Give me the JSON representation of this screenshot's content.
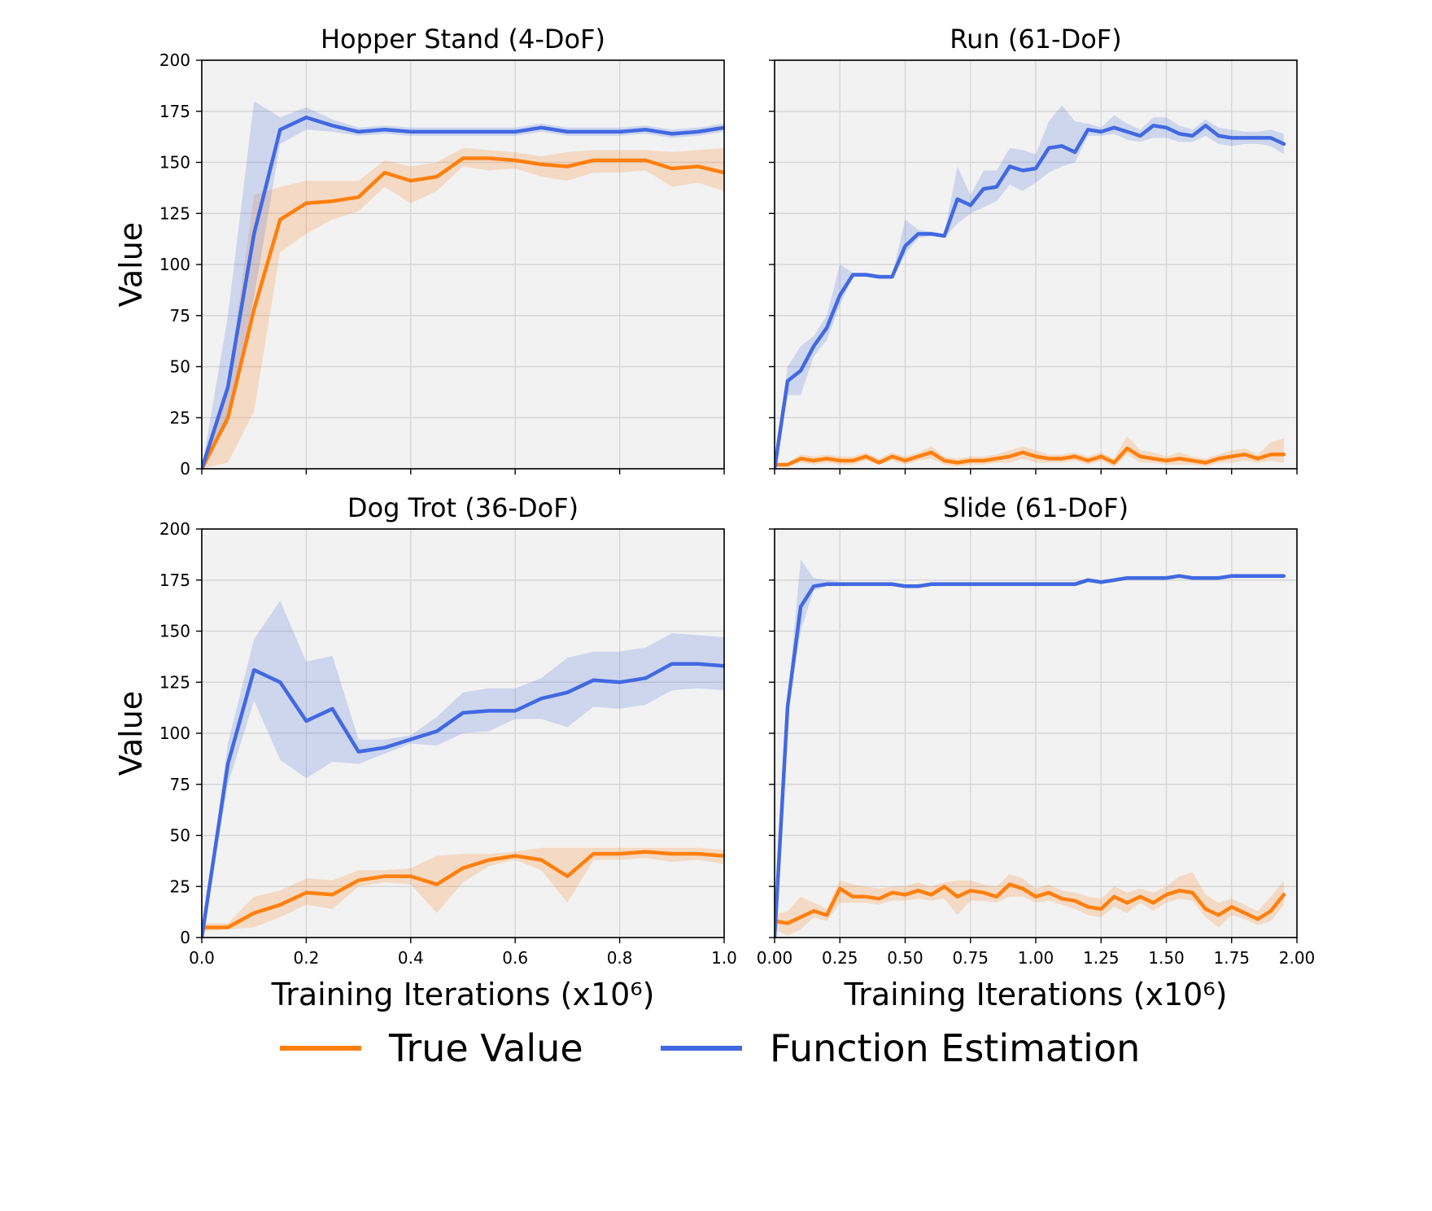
{
  "legend": {
    "items": [
      {
        "label": "True Value",
        "color": "#ff7f0e"
      },
      {
        "label": "Function Estimation",
        "color": "#4169e1"
      }
    ]
  },
  "chart_data": [
    {
      "type": "line",
      "title": "Hopper Stand (4-DoF)",
      "xlabel": "",
      "ylabel": "Value",
      "xlim": [
        0,
        1.0
      ],
      "ylim": [
        0,
        200
      ],
      "xticks": [
        0.0,
        0.2,
        0.4,
        0.6,
        0.8,
        1.0
      ],
      "xtick_labels": [
        "",
        "",
        "",
        "",
        "",
        ""
      ],
      "yticks": [
        0,
        25,
        50,
        75,
        100,
        125,
        150,
        175,
        200
      ],
      "ytick_labels": [
        "0",
        "25",
        "50",
        "75",
        "100",
        "125",
        "150",
        "175",
        "200"
      ],
      "grid": true,
      "x": [
        0,
        0.05,
        0.1,
        0.15,
        0.2,
        0.25,
        0.3,
        0.35,
        0.4,
        0.45,
        0.5,
        0.55,
        0.6,
        0.65,
        0.7,
        0.75,
        0.8,
        0.85,
        0.9,
        0.95,
        1.0
      ],
      "series": [
        {
          "name": "True Value",
          "color": "#ff7f0e",
          "values": [
            0,
            25,
            78,
            122,
            130,
            131,
            133,
            145,
            141,
            143,
            152,
            152,
            151,
            149,
            148,
            151,
            151,
            151,
            147,
            148,
            145
          ],
          "lower": [
            0,
            3,
            28,
            106,
            115,
            122,
            126,
            138,
            130,
            136,
            148,
            146,
            147,
            143,
            141,
            145,
            145,
            146,
            138,
            140,
            136
          ],
          "upper": [
            0,
            42,
            134,
            138,
            141,
            141,
            141,
            151,
            148,
            150,
            157,
            156,
            155,
            153,
            155,
            156,
            156,
            156,
            155,
            156,
            157
          ]
        },
        {
          "name": "Function Estimation",
          "color": "#4169e1",
          "values": [
            0,
            40,
            115,
            166,
            172,
            168,
            165,
            166,
            165,
            165,
            165,
            165,
            165,
            167,
            165,
            165,
            165,
            166,
            164,
            165,
            167
          ],
          "lower": [
            0,
            22,
            84,
            159,
            166,
            165,
            163,
            164,
            163,
            163,
            163,
            163,
            163,
            165,
            163,
            163,
            163,
            164,
            162,
            163,
            165
          ],
          "upper": [
            0,
            75,
            180,
            172,
            177,
            171,
            167,
            168,
            167,
            167,
            167,
            167,
            167,
            169,
            167,
            167,
            167,
            168,
            166,
            167,
            169
          ]
        }
      ]
    },
    {
      "type": "line",
      "title": "Run (61-DoF)",
      "xlabel": "",
      "ylabel": "",
      "xlim": [
        0,
        2.0
      ],
      "ylim": [
        0,
        200
      ],
      "xticks": [
        0,
        0.25,
        0.5,
        0.75,
        1.0,
        1.25,
        1.5,
        1.75,
        2.0
      ],
      "xtick_labels": [
        "",
        "",
        "",
        "",
        "",
        "",
        "",
        "",
        ""
      ],
      "yticks": [
        0,
        25,
        50,
        75,
        100,
        125,
        150,
        175,
        200
      ],
      "ytick_labels": [
        "",
        "",
        "",
        "",
        "",
        "",
        "",
        "",
        ""
      ],
      "grid": true,
      "x": [
        0,
        0.05,
        0.1,
        0.15,
        0.2,
        0.25,
        0.3,
        0.35,
        0.4,
        0.45,
        0.5,
        0.55,
        0.6,
        0.65,
        0.7,
        0.75,
        0.8,
        0.85,
        0.9,
        0.95,
        1.0,
        1.05,
        1.1,
        1.15,
        1.2,
        1.25,
        1.3,
        1.35,
        1.4,
        1.45,
        1.5,
        1.55,
        1.6,
        1.65,
        1.7,
        1.75,
        1.8,
        1.85,
        1.9,
        1.95
      ],
      "series": [
        {
          "name": "True Value",
          "color": "#ff7f0e",
          "values": [
            2,
            2,
            5,
            4,
            5,
            4,
            4,
            6,
            3,
            6,
            4,
            6,
            8,
            4,
            3,
            4,
            4,
            5,
            6,
            8,
            6,
            5,
            5,
            6,
            4,
            6,
            3,
            10,
            6,
            5,
            4,
            5,
            4,
            3,
            5,
            6,
            7,
            5,
            7,
            7
          ],
          "lower": [
            1,
            1,
            3,
            2,
            3,
            2,
            2,
            4,
            2,
            4,
            2,
            4,
            5,
            2,
            1,
            2,
            2,
            3,
            3,
            5,
            3,
            3,
            3,
            4,
            2,
            4,
            1,
            7,
            3,
            3,
            2,
            2,
            2,
            1,
            3,
            3,
            4,
            3,
            4,
            3
          ],
          "upper": [
            3,
            3,
            7,
            6,
            7,
            6,
            6,
            8,
            5,
            8,
            6,
            8,
            11,
            6,
            5,
            6,
            6,
            7,
            9,
            11,
            9,
            7,
            7,
            8,
            6,
            8,
            5,
            16,
            9,
            8,
            6,
            8,
            6,
            5,
            7,
            9,
            10,
            7,
            13,
            15
          ]
        },
        {
          "name": "Function Estimation",
          "color": "#4169e1",
          "values": [
            0,
            43,
            48,
            60,
            69,
            85,
            95,
            95,
            94,
            94,
            109,
            115,
            115,
            114,
            132,
            129,
            137,
            138,
            148,
            146,
            147,
            157,
            158,
            155,
            166,
            165,
            167,
            165,
            163,
            168,
            167,
            164,
            163,
            168,
            163,
            162,
            162,
            162,
            162,
            159
          ],
          "lower": [
            0,
            36,
            36,
            55,
            63,
            80,
            94,
            94,
            93,
            93,
            105,
            113,
            114,
            113,
            120,
            125,
            128,
            131,
            139,
            136,
            140,
            145,
            148,
            150,
            163,
            163,
            164,
            161,
            160,
            162,
            162,
            160,
            160,
            163,
            159,
            158,
            159,
            159,
            158,
            154
          ],
          "upper": [
            0,
            50,
            60,
            65,
            75,
            100,
            96,
            96,
            95,
            95,
            122,
            117,
            116,
            115,
            148,
            134,
            146,
            146,
            157,
            156,
            154,
            170,
            178,
            170,
            169,
            167,
            173,
            169,
            166,
            172,
            172,
            168,
            166,
            171,
            167,
            166,
            165,
            165,
            166,
            164
          ]
        }
      ]
    },
    {
      "type": "line",
      "title": "Dog Trot (36-DoF)",
      "xlabel": "Training Iterations (x10⁶)",
      "ylabel": "Value",
      "xlim": [
        0,
        1.0
      ],
      "ylim": [
        0,
        200
      ],
      "xticks": [
        0.0,
        0.2,
        0.4,
        0.6,
        0.8,
        1.0
      ],
      "xtick_labels": [
        "0.0",
        "0.2",
        "0.4",
        "0.6",
        "0.8",
        "1.0"
      ],
      "yticks": [
        0,
        25,
        50,
        75,
        100,
        125,
        150,
        175,
        200
      ],
      "ytick_labels": [
        "0",
        "25",
        "50",
        "75",
        "100",
        "125",
        "150",
        "175",
        "200"
      ],
      "grid": true,
      "x": [
        0,
        0.05,
        0.1,
        0.15,
        0.2,
        0.25,
        0.3,
        0.35,
        0.4,
        0.45,
        0.5,
        0.55,
        0.6,
        0.65,
        0.7,
        0.75,
        0.8,
        0.85,
        0.9,
        0.95,
        1.0
      ],
      "series": [
        {
          "name": "True Value",
          "color": "#ff7f0e",
          "values": [
            5,
            5,
            12,
            16,
            22,
            21,
            28,
            30,
            30,
            26,
            34,
            38,
            40,
            38,
            30,
            41,
            41,
            42,
            41,
            41,
            40
          ],
          "lower": [
            3,
            4,
            5,
            10,
            16,
            14,
            25,
            27,
            26,
            12,
            27,
            35,
            38,
            33,
            17,
            38,
            38,
            39,
            37,
            38,
            36
          ],
          "upper": [
            7,
            7,
            20,
            23,
            29,
            28,
            33,
            33,
            34,
            40,
            41,
            41,
            42,
            44,
            44,
            44,
            44,
            44,
            44,
            44,
            43
          ]
        },
        {
          "name": "Function Estimation",
          "color": "#4169e1",
          "values": [
            0,
            85,
            131,
            125,
            106,
            112,
            91,
            93,
            97,
            101,
            110,
            111,
            111,
            117,
            120,
            126,
            125,
            127,
            134,
            134,
            133
          ],
          "lower": [
            0,
            75,
            116,
            87,
            78,
            86,
            85,
            90,
            95,
            94,
            100,
            101,
            107,
            107,
            103,
            113,
            112,
            114,
            121,
            122,
            121
          ],
          "upper": [
            0,
            95,
            146,
            165,
            135,
            138,
            97,
            97,
            99,
            108,
            120,
            122,
            122,
            127,
            137,
            140,
            140,
            142,
            149,
            148,
            147
          ]
        }
      ]
    },
    {
      "type": "line",
      "title": "Slide (61-DoF)",
      "xlabel": "Training Iterations (x10⁶)",
      "ylabel": "",
      "xlim": [
        0,
        2.0
      ],
      "ylim": [
        0,
        200
      ],
      "xticks": [
        0,
        0.25,
        0.5,
        0.75,
        1.0,
        1.25,
        1.5,
        1.75,
        2.0
      ],
      "xtick_labels": [
        "0.00",
        "0.25",
        "0.50",
        "0.75",
        "1.00",
        "1.25",
        "1.50",
        "1.75",
        "2.00"
      ],
      "yticks": [
        0,
        25,
        50,
        75,
        100,
        125,
        150,
        175,
        200
      ],
      "ytick_labels": [
        "",
        "",
        "",
        "",
        "",
        "",
        "",
        "",
        ""
      ],
      "grid": true,
      "x": [
        0,
        0.05,
        0.1,
        0.15,
        0.2,
        0.25,
        0.3,
        0.35,
        0.4,
        0.45,
        0.5,
        0.55,
        0.6,
        0.65,
        0.7,
        0.75,
        0.8,
        0.85,
        0.9,
        0.95,
        1.0,
        1.05,
        1.1,
        1.15,
        1.2,
        1.25,
        1.3,
        1.35,
        1.4,
        1.45,
        1.5,
        1.55,
        1.6,
        1.65,
        1.7,
        1.75,
        1.8,
        1.85,
        1.9,
        1.95
      ],
      "series": [
        {
          "name": "True Value",
          "color": "#ff7f0e",
          "values": [
            8,
            7,
            10,
            13,
            11,
            24,
            20,
            20,
            19,
            22,
            21,
            23,
            21,
            25,
            20,
            23,
            22,
            20,
            26,
            24,
            20,
            22,
            19,
            18,
            15,
            14,
            20,
            17,
            20,
            17,
            21,
            23,
            22,
            14,
            11,
            15,
            12,
            9,
            13,
            21
          ],
          "lower": [
            4,
            1,
            4,
            10,
            8,
            17,
            17,
            17,
            16,
            18,
            18,
            19,
            18,
            19,
            11,
            18,
            18,
            17,
            20,
            20,
            17,
            18,
            16,
            14,
            11,
            10,
            15,
            12,
            17,
            13,
            17,
            19,
            18,
            10,
            5,
            11,
            9,
            6,
            8,
            16
          ],
          "upper": [
            11,
            13,
            20,
            17,
            14,
            28,
            26,
            25,
            24,
            25,
            25,
            27,
            25,
            27,
            28,
            28,
            26,
            25,
            31,
            29,
            24,
            26,
            23,
            22,
            20,
            19,
            25,
            22,
            24,
            22,
            25,
            30,
            32,
            21,
            17,
            19,
            16,
            13,
            20,
            28
          ]
        },
        {
          "name": "Function Estimation",
          "color": "#4169e1",
          "values": [
            0,
            113,
            162,
            172,
            173,
            173,
            173,
            173,
            173,
            173,
            172,
            172,
            173,
            173,
            173,
            173,
            173,
            173,
            173,
            173,
            173,
            173,
            173,
            173,
            175,
            174,
            175,
            176,
            176,
            176,
            176,
            177,
            176,
            176,
            176,
            177,
            177,
            177,
            177,
            177
          ],
          "lower": [
            0,
            110,
            150,
            170,
            172,
            172,
            172,
            172,
            172,
            172,
            171,
            171,
            172,
            172,
            172,
            172,
            172,
            172,
            172,
            172,
            172,
            172,
            172,
            172,
            174,
            173,
            174,
            175,
            175,
            175,
            175,
            176,
            175,
            175,
            175,
            176,
            176,
            176,
            176,
            176
          ],
          "upper": [
            0,
            116,
            185,
            176,
            175,
            174,
            174,
            174,
            174,
            174,
            173,
            173,
            174,
            174,
            174,
            174,
            174,
            174,
            174,
            174,
            174,
            174,
            174,
            174,
            176,
            175,
            176,
            177,
            177,
            177,
            177,
            178,
            177,
            177,
            177,
            178,
            178,
            178,
            178,
            178
          ]
        }
      ]
    }
  ]
}
